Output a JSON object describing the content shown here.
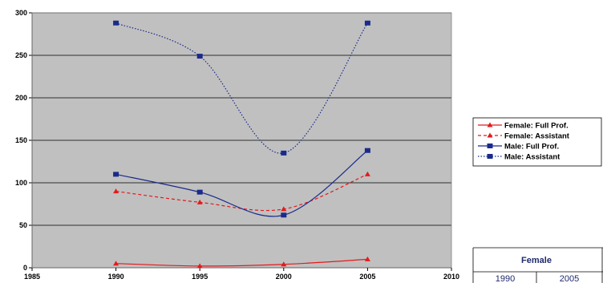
{
  "chart_data": {
    "type": "line",
    "title": "",
    "xlabel": "",
    "ylabel": "",
    "xlim": [
      1985,
      2010
    ],
    "ylim": [
      0,
      300
    ],
    "xticks": [
      1985,
      1990,
      1995,
      2000,
      2005,
      2010
    ],
    "yticks": [
      0,
      50,
      100,
      150,
      200,
      250,
      300
    ],
    "grid": "horizontal",
    "plot_background": "#c0c0c0",
    "legend_position": "right",
    "series": [
      {
        "name": "Female: Full Prof.",
        "color": "#e41a1c",
        "dash": "solid",
        "marker": "triangle",
        "x": [
          1990,
          1995,
          2000,
          2005
        ],
        "y": [
          5,
          2,
          4,
          10
        ]
      },
      {
        "name": "Female: Assistant",
        "color": "#e41a1c",
        "dash": "dashed",
        "marker": "triangle",
        "x": [
          1990,
          1995,
          2000,
          2005
        ],
        "y": [
          90,
          77,
          69,
          110
        ]
      },
      {
        "name": "Male: Full Prof.",
        "color": "#1a2a8c",
        "dash": "solid",
        "marker": "square",
        "x": [
          1990,
          1995,
          2000,
          2005
        ],
        "y": [
          110,
          89,
          62,
          138
        ]
      },
      {
        "name": "Male: Assistant",
        "color": "#1a2a8c",
        "dash": "dotted",
        "marker": "square",
        "x": [
          1990,
          1995,
          2000,
          2005
        ],
        "y": [
          288,
          249,
          135,
          288
        ]
      }
    ]
  },
  "table": {
    "header": "Female",
    "columns": [
      "1990",
      "2005"
    ]
  }
}
